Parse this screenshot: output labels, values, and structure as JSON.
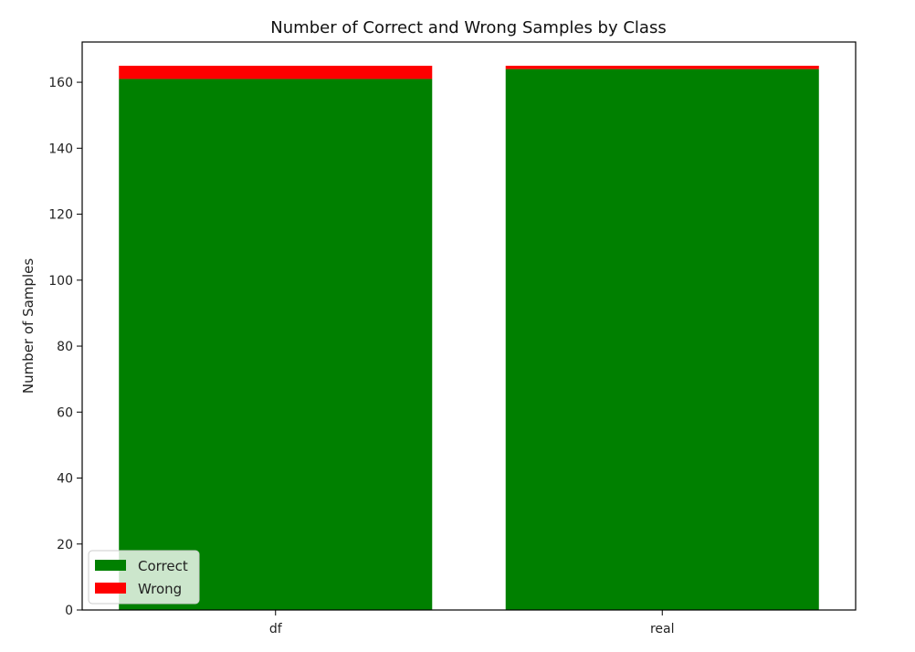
{
  "chart_data": {
    "type": "bar",
    "stacked": true,
    "title": "Number of Correct and Wrong Samples by Class",
    "xlabel": "",
    "ylabel": "Number of Samples",
    "categories": [
      "df",
      "real"
    ],
    "series": [
      {
        "name": "Correct",
        "values": [
          161,
          164
        ],
        "color": "#008000"
      },
      {
        "name": "Wrong",
        "values": [
          4,
          1
        ],
        "color": "#ff0000"
      }
    ],
    "ylim": [
      0,
      172.2
    ],
    "yticks": [
      0,
      20,
      40,
      60,
      80,
      100,
      120,
      140,
      160
    ],
    "legend": {
      "position": "lower-left",
      "entries": [
        "Correct",
        "Wrong"
      ]
    },
    "grid": false
  }
}
